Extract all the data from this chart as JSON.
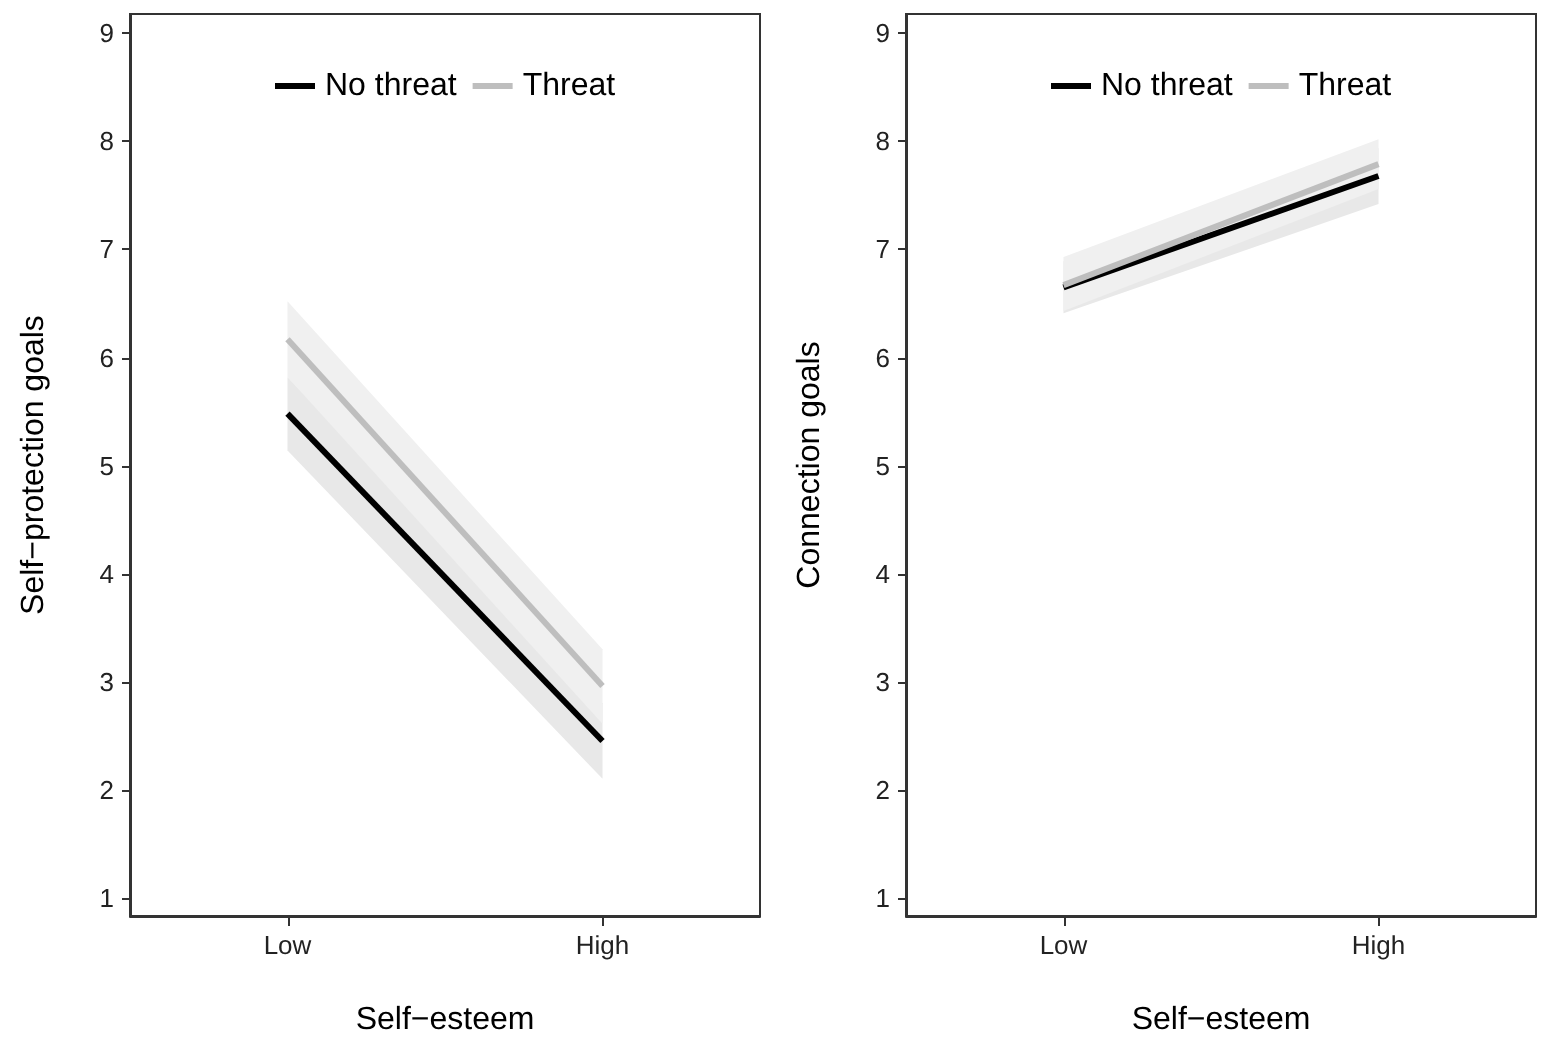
{
  "chart_data": [
    {
      "type": "line",
      "xlabel": "Self−esteem",
      "ylabel": "Self−protection goals",
      "categories": [
        "Low",
        "High"
      ],
      "ylim": [
        0.83,
        9.18
      ],
      "yticks": [
        1,
        2,
        3,
        4,
        5,
        6,
        7,
        8,
        9
      ],
      "grid": false,
      "legend": "top",
      "marker": "none",
      "line_style": "solid",
      "series": [
        {
          "name": "No threat",
          "color": "#000000",
          "values": [
            5.48,
            2.45
          ],
          "lower": [
            5.14,
            2.1
          ],
          "upper": [
            5.82,
            2.8
          ]
        },
        {
          "name": "Threat",
          "color": "#bebebe",
          "values": [
            6.17,
            2.96
          ],
          "lower": [
            5.82,
            2.61
          ],
          "upper": [
            6.52,
            3.3
          ]
        }
      ]
    },
    {
      "type": "line",
      "xlabel": "Self−esteem",
      "ylabel": "Connection goals",
      "categories": [
        "Low",
        "High"
      ],
      "ylim": [
        0.83,
        9.18
      ],
      "yticks": [
        1,
        2,
        3,
        4,
        5,
        6,
        7,
        8,
        9
      ],
      "grid": false,
      "legend": "top",
      "marker": "none",
      "line_style": "solid",
      "series": [
        {
          "name": "No threat",
          "color": "#000000",
          "values": [
            6.65,
            7.68
          ],
          "lower": [
            6.41,
            7.42
          ],
          "upper": [
            6.89,
            7.94
          ]
        },
        {
          "name": "Threat",
          "color": "#bebebe",
          "values": [
            6.67,
            7.79
          ],
          "lower": [
            6.43,
            7.56
          ],
          "upper": [
            6.93,
            8.02
          ]
        }
      ]
    }
  ]
}
